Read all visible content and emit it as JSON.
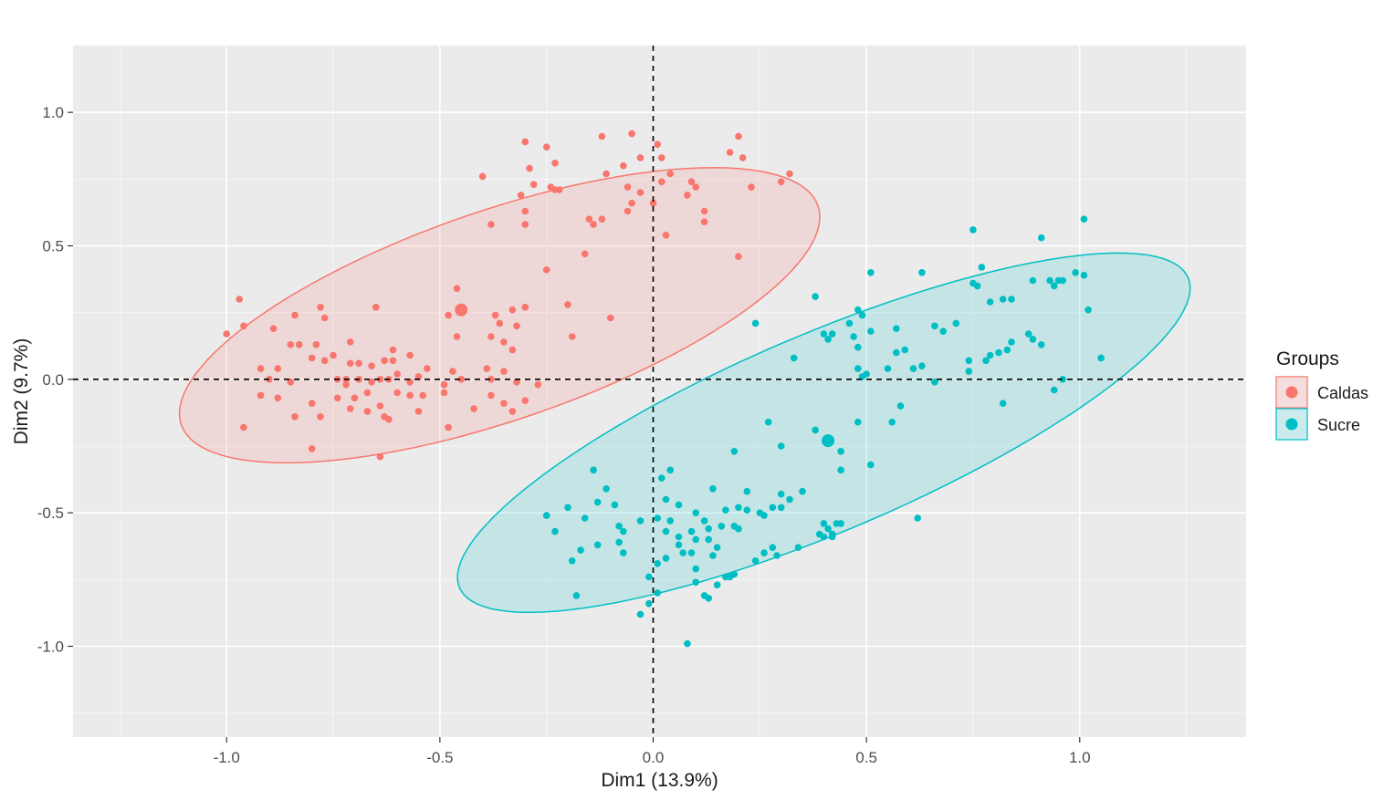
{
  "chart_data": {
    "type": "scatter",
    "title": "",
    "xlabel": "Dim1 (13.9%)",
    "ylabel": "Dim2 (9.7%)",
    "xlim": [
      -1.36,
      1.39
    ],
    "ylim": [
      -1.34,
      1.25
    ],
    "x_ticks": [
      -1.0,
      -0.5,
      0.0,
      0.5,
      1.0
    ],
    "x_tick_labels": [
      "-1.0",
      "-0.5",
      "0.0",
      "0.5",
      "1.0"
    ],
    "y_ticks": [
      1.0,
      0.5,
      0.0,
      -0.5,
      -1.0
    ],
    "y_tick_labels": [
      "1.0",
      "0.5",
      "0.0",
      "-0.5",
      "-1.0"
    ],
    "grid": true,
    "reference_lines": {
      "x": 0,
      "y": 0,
      "style": "dashed"
    },
    "legend": {
      "title": "Groups",
      "position": "right"
    },
    "series": [
      {
        "name": "Caldas",
        "color": "#F8766D",
        "centroid": [
          -0.45,
          0.26
        ],
        "ellipse": {
          "center": [
            -0.36,
            0.24
          ],
          "semi_major": 0.86,
          "semi_minor": 0.36,
          "angle_deg": 32.5
        },
        "points": [
          [
            -0.3,
            0.89
          ],
          [
            -0.25,
            0.87
          ],
          [
            -0.12,
            0.91
          ],
          [
            -0.05,
            0.92
          ],
          [
            0.01,
            0.88
          ],
          [
            0.2,
            0.91
          ],
          [
            0.18,
            0.85
          ],
          [
            -0.4,
            0.76
          ],
          [
            -0.29,
            0.79
          ],
          [
            -0.23,
            0.81
          ],
          [
            -0.11,
            0.77
          ],
          [
            -0.07,
            0.8
          ],
          [
            -0.03,
            0.83
          ],
          [
            0.02,
            0.83
          ],
          [
            0.21,
            0.83
          ],
          [
            0.32,
            0.77
          ],
          [
            -0.28,
            0.73
          ],
          [
            -0.24,
            0.72
          ],
          [
            -0.23,
            0.71
          ],
          [
            -0.22,
            0.71
          ],
          [
            -0.06,
            0.72
          ],
          [
            0.02,
            0.74
          ],
          [
            0.04,
            0.77
          ],
          [
            0.09,
            0.74
          ],
          [
            0.1,
            0.72
          ],
          [
            0.3,
            0.74
          ],
          [
            0.23,
            0.72
          ],
          [
            -0.31,
            0.69
          ],
          [
            -0.3,
            0.63
          ],
          [
            -0.38,
            0.58
          ],
          [
            -0.3,
            0.58
          ],
          [
            -0.15,
            0.6
          ],
          [
            -0.14,
            0.58
          ],
          [
            -0.12,
            0.6
          ],
          [
            -0.06,
            0.63
          ],
          [
            -0.05,
            0.66
          ],
          [
            -0.03,
            0.7
          ],
          [
            0.0,
            0.66
          ],
          [
            0.08,
            0.69
          ],
          [
            0.12,
            0.63
          ],
          [
            0.12,
            0.59
          ],
          [
            0.03,
            0.54
          ],
          [
            -0.16,
            0.47
          ],
          [
            0.2,
            0.46
          ],
          [
            -0.25,
            0.41
          ],
          [
            -0.97,
            0.3
          ],
          [
            -1.0,
            0.17
          ],
          [
            -0.96,
            0.2
          ],
          [
            -0.84,
            0.24
          ],
          [
            -0.78,
            0.27
          ],
          [
            -0.77,
            0.23
          ],
          [
            -0.65,
            0.27
          ],
          [
            -0.46,
            0.34
          ],
          [
            -0.48,
            0.24
          ],
          [
            -0.45,
            0.26
          ],
          [
            -0.37,
            0.24
          ],
          [
            -0.36,
            0.21
          ],
          [
            -0.33,
            0.26
          ],
          [
            -0.3,
            0.27
          ],
          [
            -0.2,
            0.28
          ],
          [
            -0.1,
            0.23
          ],
          [
            -0.89,
            0.19
          ],
          [
            -0.85,
            0.13
          ],
          [
            -0.83,
            0.13
          ],
          [
            -0.79,
            0.13
          ],
          [
            -0.71,
            0.14
          ],
          [
            -0.61,
            0.11
          ],
          [
            -0.61,
            0.07
          ],
          [
            -0.57,
            0.09
          ],
          [
            -0.46,
            0.16
          ],
          [
            -0.38,
            0.16
          ],
          [
            -0.35,
            0.14
          ],
          [
            -0.32,
            0.2
          ],
          [
            -0.33,
            0.11
          ],
          [
            -0.19,
            0.16
          ],
          [
            -0.8,
            0.08
          ],
          [
            -0.77,
            0.07
          ],
          [
            -0.75,
            0.09
          ],
          [
            -0.71,
            0.06
          ],
          [
            -0.69,
            0.06
          ],
          [
            -0.66,
            0.05
          ],
          [
            -0.63,
            0.07
          ],
          [
            -0.53,
            0.04
          ],
          [
            -0.39,
            0.04
          ],
          [
            -0.35,
            0.03
          ],
          [
            -0.47,
            0.03
          ],
          [
            -0.92,
            0.04
          ],
          [
            -0.88,
            0.04
          ],
          [
            -0.9,
            0.0
          ],
          [
            -0.85,
            -0.01
          ],
          [
            -0.74,
            0.0
          ],
          [
            -0.72,
            0.0
          ],
          [
            -0.72,
            -0.02
          ],
          [
            -0.69,
            0.0
          ],
          [
            -0.66,
            -0.01
          ],
          [
            -0.64,
            0.0
          ],
          [
            -0.62,
            0.0
          ],
          [
            -0.6,
            0.02
          ],
          [
            -0.57,
            -0.01
          ],
          [
            -0.55,
            0.01
          ],
          [
            -0.49,
            -0.02
          ],
          [
            -0.45,
            0.0
          ],
          [
            -0.38,
            0.0
          ],
          [
            -0.32,
            -0.01
          ],
          [
            -0.27,
            -0.02
          ],
          [
            -0.92,
            -0.06
          ],
          [
            -0.88,
            -0.07
          ],
          [
            -0.8,
            -0.09
          ],
          [
            -0.74,
            -0.07
          ],
          [
            -0.7,
            -0.07
          ],
          [
            -0.67,
            -0.05
          ],
          [
            -0.64,
            -0.1
          ],
          [
            -0.6,
            -0.05
          ],
          [
            -0.57,
            -0.06
          ],
          [
            -0.54,
            -0.06
          ],
          [
            -0.49,
            -0.05
          ],
          [
            -0.42,
            -0.11
          ],
          [
            -0.38,
            -0.06
          ],
          [
            -0.35,
            -0.09
          ],
          [
            -0.3,
            -0.08
          ],
          [
            -0.84,
            -0.14
          ],
          [
            -0.78,
            -0.14
          ],
          [
            -0.71,
            -0.11
          ],
          [
            -0.67,
            -0.12
          ],
          [
            -0.63,
            -0.14
          ],
          [
            -0.62,
            -0.15
          ],
          [
            -0.55,
            -0.12
          ],
          [
            -0.33,
            -0.12
          ],
          [
            -0.96,
            -0.18
          ],
          [
            -0.48,
            -0.18
          ],
          [
            -0.8,
            -0.26
          ],
          [
            -0.64,
            -0.29
          ]
        ]
      },
      {
        "name": "Sucre",
        "color": "#00BFC4",
        "centroid": [
          0.41,
          -0.23
        ],
        "ellipse": {
          "center": [
            0.4,
            -0.2
          ],
          "semi_major": 1.04,
          "semi_minor": 0.33,
          "angle_deg": 36.5
        },
        "points": [
          [
            1.01,
            0.6
          ],
          [
            0.75,
            0.56
          ],
          [
            0.91,
            0.53
          ],
          [
            0.77,
            0.42
          ],
          [
            0.51,
            0.4
          ],
          [
            0.63,
            0.4
          ],
          [
            0.99,
            0.4
          ],
          [
            1.01,
            0.39
          ],
          [
            0.93,
            0.37
          ],
          [
            0.95,
            0.37
          ],
          [
            0.96,
            0.37
          ],
          [
            0.89,
            0.37
          ],
          [
            0.75,
            0.36
          ],
          [
            0.76,
            0.35
          ],
          [
            0.94,
            0.35
          ],
          [
            0.38,
            0.31
          ],
          [
            0.82,
            0.3
          ],
          [
            0.84,
            0.3
          ],
          [
            0.79,
            0.29
          ],
          [
            1.02,
            0.26
          ],
          [
            0.48,
            0.26
          ],
          [
            0.49,
            0.24
          ],
          [
            0.46,
            0.21
          ],
          [
            0.24,
            0.21
          ],
          [
            0.71,
            0.21
          ],
          [
            0.66,
            0.2
          ],
          [
            0.68,
            0.18
          ],
          [
            0.57,
            0.19
          ],
          [
            0.51,
            0.18
          ],
          [
            0.47,
            0.16
          ],
          [
            0.4,
            0.17
          ],
          [
            0.42,
            0.17
          ],
          [
            0.41,
            0.15
          ],
          [
            0.88,
            0.17
          ],
          [
            0.89,
            0.15
          ],
          [
            0.84,
            0.14
          ],
          [
            0.91,
            0.13
          ],
          [
            0.83,
            0.11
          ],
          [
            0.81,
            0.1
          ],
          [
            0.79,
            0.09
          ],
          [
            0.59,
            0.11
          ],
          [
            0.57,
            0.1
          ],
          [
            0.48,
            0.12
          ],
          [
            0.33,
            0.08
          ],
          [
            0.74,
            0.07
          ],
          [
            0.78,
            0.07
          ],
          [
            0.63,
            0.05
          ],
          [
            0.61,
            0.04
          ],
          [
            0.55,
            0.04
          ],
          [
            0.48,
            0.04
          ],
          [
            0.5,
            0.02
          ],
          [
            0.49,
            0.01
          ],
          [
            0.74,
            0.03
          ],
          [
            1.05,
            0.08
          ],
          [
            0.96,
            0.0
          ],
          [
            0.94,
            -0.04
          ],
          [
            0.66,
            -0.01
          ],
          [
            0.82,
            -0.09
          ],
          [
            0.58,
            -0.1
          ],
          [
            0.56,
            -0.16
          ],
          [
            0.48,
            -0.16
          ],
          [
            0.27,
            -0.16
          ],
          [
            0.38,
            -0.19
          ],
          [
            0.41,
            -0.23
          ],
          [
            0.3,
            -0.25
          ],
          [
            0.19,
            -0.27
          ],
          [
            0.44,
            -0.27
          ],
          [
            0.51,
            -0.32
          ],
          [
            0.44,
            -0.34
          ],
          [
            -0.14,
            -0.34
          ],
          [
            0.04,
            -0.34
          ],
          [
            0.02,
            -0.37
          ],
          [
            -0.11,
            -0.41
          ],
          [
            0.14,
            -0.41
          ],
          [
            0.22,
            -0.42
          ],
          [
            0.3,
            -0.43
          ],
          [
            0.32,
            -0.45
          ],
          [
            0.35,
            -0.42
          ],
          [
            0.03,
            -0.45
          ],
          [
            0.06,
            -0.47
          ],
          [
            -0.13,
            -0.46
          ],
          [
            -0.09,
            -0.47
          ],
          [
            -0.2,
            -0.48
          ],
          [
            0.2,
            -0.48
          ],
          [
            0.22,
            -0.49
          ],
          [
            0.25,
            -0.5
          ],
          [
            0.26,
            -0.51
          ],
          [
            0.28,
            -0.48
          ],
          [
            0.3,
            -0.48
          ],
          [
            0.17,
            -0.49
          ],
          [
            0.1,
            -0.5
          ],
          [
            -0.25,
            -0.51
          ],
          [
            -0.16,
            -0.52
          ],
          [
            -0.03,
            -0.53
          ],
          [
            0.01,
            -0.52
          ],
          [
            0.04,
            -0.53
          ],
          [
            0.12,
            -0.53
          ],
          [
            0.16,
            -0.55
          ],
          [
            0.19,
            -0.55
          ],
          [
            0.2,
            -0.56
          ],
          [
            0.13,
            -0.56
          ],
          [
            0.09,
            -0.57
          ],
          [
            0.4,
            -0.54
          ],
          [
            0.43,
            -0.54
          ],
          [
            0.44,
            -0.54
          ],
          [
            -0.23,
            -0.57
          ],
          [
            -0.08,
            -0.55
          ],
          [
            -0.07,
            -0.57
          ],
          [
            -0.13,
            -0.62
          ],
          [
            0.03,
            -0.57
          ],
          [
            0.06,
            -0.59
          ],
          [
            0.41,
            -0.56
          ],
          [
            0.42,
            -0.58
          ],
          [
            0.42,
            -0.59
          ],
          [
            0.4,
            -0.59
          ],
          [
            0.39,
            -0.58
          ],
          [
            0.62,
            -0.52
          ],
          [
            0.13,
            -0.6
          ],
          [
            0.1,
            -0.6
          ],
          [
            0.15,
            -0.63
          ],
          [
            0.34,
            -0.63
          ],
          [
            0.28,
            -0.63
          ],
          [
            0.26,
            -0.65
          ],
          [
            0.29,
            -0.66
          ],
          [
            -0.17,
            -0.64
          ],
          [
            -0.08,
            -0.61
          ],
          [
            -0.07,
            -0.65
          ],
          [
            0.06,
            -0.62
          ],
          [
            0.07,
            -0.65
          ],
          [
            0.09,
            -0.65
          ],
          [
            0.14,
            -0.66
          ],
          [
            0.03,
            -0.67
          ],
          [
            0.24,
            -0.68
          ],
          [
            -0.19,
            -0.68
          ],
          [
            0.01,
            -0.69
          ],
          [
            0.1,
            -0.71
          ],
          [
            0.19,
            -0.73
          ],
          [
            0.17,
            -0.74
          ],
          [
            0.18,
            -0.74
          ],
          [
            -0.01,
            -0.74
          ],
          [
            0.1,
            -0.76
          ],
          [
            0.15,
            -0.77
          ],
          [
            0.01,
            -0.8
          ],
          [
            -0.18,
            -0.81
          ],
          [
            0.12,
            -0.81
          ],
          [
            0.13,
            -0.82
          ],
          [
            -0.01,
            -0.84
          ],
          [
            -0.03,
            -0.88
          ],
          [
            0.08,
            -0.99
          ]
        ]
      }
    ]
  }
}
